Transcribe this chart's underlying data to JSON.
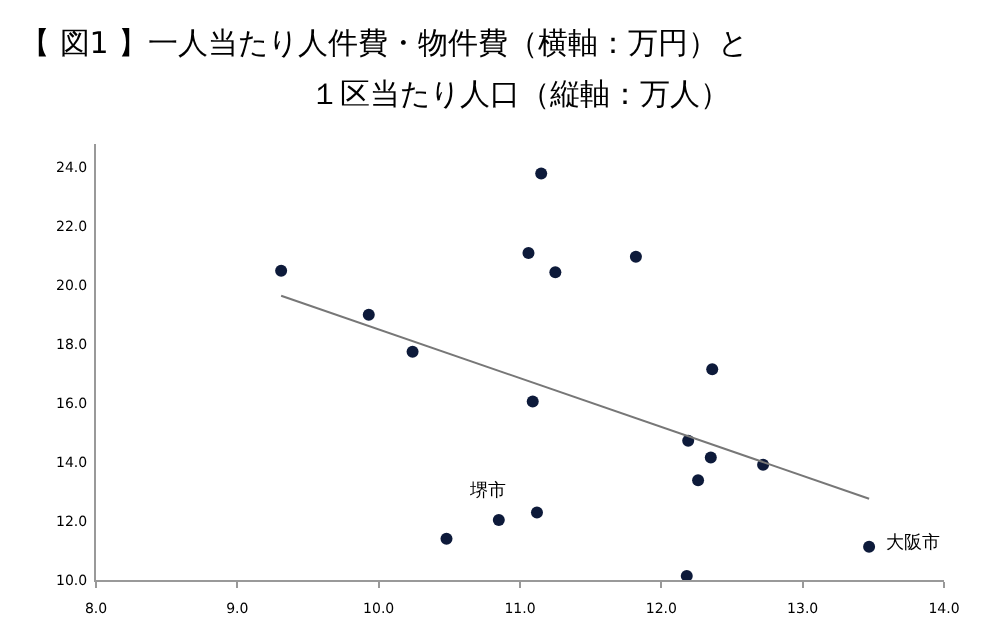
{
  "chart_data": {
    "type": "scatter",
    "title": "【 図1 】一人当たり人件費・物件費（横軸：万円）と",
    "subtitle": "１区当たり人口（縦軸：万人）",
    "series": [
      {
        "marker": "circle",
        "color": "#0d1a3a",
        "x": [
          9.31,
          9.93,
          10.24,
          10.48,
          10.85,
          11.15,
          11.06,
          11.25,
          11.82,
          12.36,
          11.09,
          12.19,
          12.35,
          12.72,
          12.26,
          11.12,
          13.47,
          12.18
        ],
        "values": [
          20.5,
          19.0,
          17.75,
          11.4,
          12.04,
          23.8,
          21.1,
          20.45,
          20.97,
          17.15,
          16.06,
          14.73,
          14.16,
          13.91,
          13.39,
          12.29,
          11.13,
          10.14
        ]
      },
      {
        "type": "line",
        "color": "#777777",
        "x": [
          9.31,
          13.47
        ],
        "values": [
          19.65,
          12.76
        ]
      }
    ],
    "annotations": [
      {
        "text": "堺市",
        "x": 10.85,
        "y": 12.04
      },
      {
        "text": "大阪市",
        "x": 13.47,
        "y": 11.13
      }
    ],
    "xlim": [
      8.0,
      14.0
    ],
    "xticks": [
      {
        "value": 8,
        "label": "8.0"
      },
      {
        "value": 9,
        "label": "9.0"
      },
      {
        "value": 10,
        "label": "10.0"
      },
      {
        "value": 11,
        "label": "11.0"
      },
      {
        "value": 12,
        "label": "12.0"
      },
      {
        "value": 13,
        "label": "13.0"
      },
      {
        "value": 14,
        "label": "14.0"
      }
    ],
    "ylim": [
      10.0,
      24.8
    ],
    "yticks": [
      {
        "value": 10,
        "label": "10.0"
      },
      {
        "value": 12,
        "label": "12.0"
      },
      {
        "value": 14,
        "label": "14.0"
      },
      {
        "value": 16,
        "label": "16.0"
      },
      {
        "value": 18,
        "label": "18.0"
      },
      {
        "value": 20,
        "label": "20.0"
      },
      {
        "value": 22,
        "label": "22.0"
      },
      {
        "value": 24,
        "label": "24.0"
      }
    ],
    "tick_labels": "xy"
  }
}
